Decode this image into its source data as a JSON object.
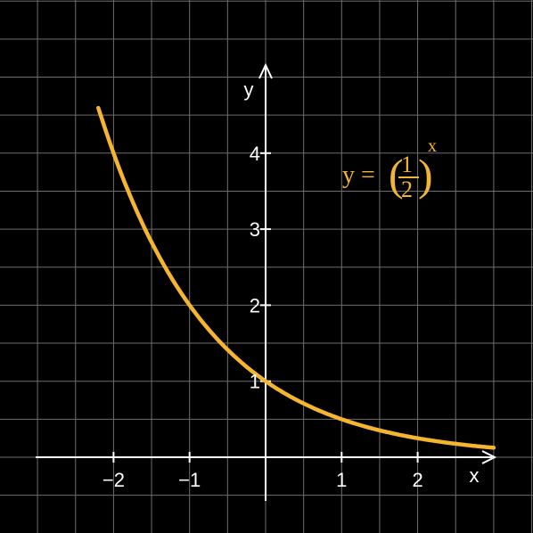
{
  "colors": {
    "background": "#000000",
    "grid": "#6e6e6e",
    "axes": "#ffffff",
    "curve": "#f5b52e",
    "formula": "#f2b535"
  },
  "chart_data": {
    "type": "line",
    "function": "(1/2)^x",
    "xlabel": "x",
    "ylabel": "y",
    "x_range": [
      -3.0,
      3.0
    ],
    "y_range": [
      -0.6,
      5.1
    ],
    "grid": true,
    "x_ticks": [
      {
        "value": -2,
        "label": "−2"
      },
      {
        "value": -1,
        "label": "−1"
      },
      {
        "value": 1,
        "label": "1"
      },
      {
        "value": 2,
        "label": "2"
      }
    ],
    "y_ticks": [
      {
        "value": 1,
        "label": "1"
      },
      {
        "value": 2,
        "label": "2"
      },
      {
        "value": 3,
        "label": "3"
      },
      {
        "value": 4,
        "label": "4"
      }
    ],
    "series": [
      {
        "x": [
          -2.2,
          -2,
          -1.5,
          -1,
          -0.5,
          0,
          0.5,
          1,
          1.5,
          2,
          2.5,
          3
        ],
        "y": [
          4.59,
          4,
          2.83,
          2,
          1.41,
          1,
          0.71,
          0.5,
          0.35,
          0.25,
          0.18,
          0.13
        ]
      }
    ],
    "annotation": {
      "lhs": "y =",
      "numerator": "1",
      "denominator": "2",
      "exponent": "x"
    }
  }
}
